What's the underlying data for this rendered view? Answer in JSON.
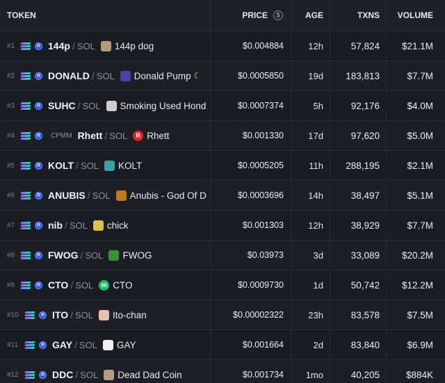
{
  "header": {
    "token": "TOKEN",
    "price": "PRICE",
    "age": "AGE",
    "txns": "TXNS",
    "volume": "VOLUME"
  },
  "rows": [
    {
      "rank": "#1",
      "symbol": "144p",
      "pair": "SOL",
      "name": "144p dog",
      "badge": "",
      "price": "$0.004884",
      "age": "12h",
      "txns": "57,824",
      "volume": "$21.1M"
    },
    {
      "rank": "#2",
      "symbol": "DONALD",
      "pair": "SOL",
      "name": "Donald Pump",
      "badge": "",
      "price": "$0.0005850",
      "age": "19d",
      "txns": "183,813",
      "volume": "$7.7M"
    },
    {
      "rank": "#3",
      "symbol": "SUHC",
      "pair": "SOL",
      "name": "Smoking Used Hond",
      "badge": "",
      "price": "$0.0007374",
      "age": "5h",
      "txns": "92,176",
      "volume": "$4.0M"
    },
    {
      "rank": "#4",
      "symbol": "Rhett",
      "pair": "SOL",
      "name": "Rhett",
      "badge": "CPMM",
      "price": "$0.001330",
      "age": "17d",
      "txns": "97,620",
      "volume": "$5.0M"
    },
    {
      "rank": "#5",
      "symbol": "KOLT",
      "pair": "SOL",
      "name": "KOLT",
      "badge": "",
      "price": "$0.0005205",
      "age": "11h",
      "txns": "288,195",
      "volume": "$2.1M"
    },
    {
      "rank": "#6",
      "symbol": "ANUBIS",
      "pair": "SOL",
      "name": "Anubis - God Of D",
      "badge": "",
      "price": "$0.0003696",
      "age": "14h",
      "txns": "38,497",
      "volume": "$5.1M"
    },
    {
      "rank": "#7",
      "symbol": "nib",
      "pair": "SOL",
      "name": "chick",
      "badge": "",
      "price": "$0.001303",
      "age": "12h",
      "txns": "38,929",
      "volume": "$7.7M"
    },
    {
      "rank": "#8",
      "symbol": "FWOG",
      "pair": "SOL",
      "name": "FWOG",
      "badge": "",
      "price": "$0.03973",
      "age": "3d",
      "txns": "33,089",
      "volume": "$20.2M"
    },
    {
      "rank": "#9",
      "symbol": "CTO",
      "pair": "SOL",
      "name": "CTO",
      "badge": "",
      "price": "$0.0009730",
      "age": "1d",
      "txns": "50,742",
      "volume": "$12.2M"
    },
    {
      "rank": "#10",
      "symbol": "ITO",
      "pair": "SOL",
      "name": "Ito-chan",
      "badge": "",
      "price": "$0.00002322",
      "age": "23h",
      "txns": "83,578",
      "volume": "$7.5M"
    },
    {
      "rank": "#11",
      "symbol": "GAY",
      "pair": "SOL",
      "name": "GAY",
      "badge": "",
      "price": "$0.001664",
      "age": "2d",
      "txns": "83,840",
      "volume": "$6.9M"
    },
    {
      "rank": "#12",
      "symbol": "DDC",
      "pair": "SOL",
      "name": "Dead Dad Coin",
      "badge": "",
      "price": "$0.001734",
      "age": "1mo",
      "txns": "40,205",
      "volume": "$884K"
    }
  ],
  "icons": {
    "header_price": "dollar-circle-icon",
    "chain": "solana-icon",
    "dex": "raydium-icon"
  },
  "avatar_colors": [
    "#b39a7a",
    "#4b3fa8",
    "#cfcfcf",
    "#e0262d",
    "#3aa0a8",
    "#c2781e",
    "#d9c34a",
    "#3a8f3a",
    "#1ec26b",
    "#e6c1b0",
    "#f0f0f0",
    "#b59b86"
  ],
  "accent": {
    "solana_from": "#9b5cff",
    "solana_to": "#19e6b2",
    "raydium": "#2d56e8"
  }
}
